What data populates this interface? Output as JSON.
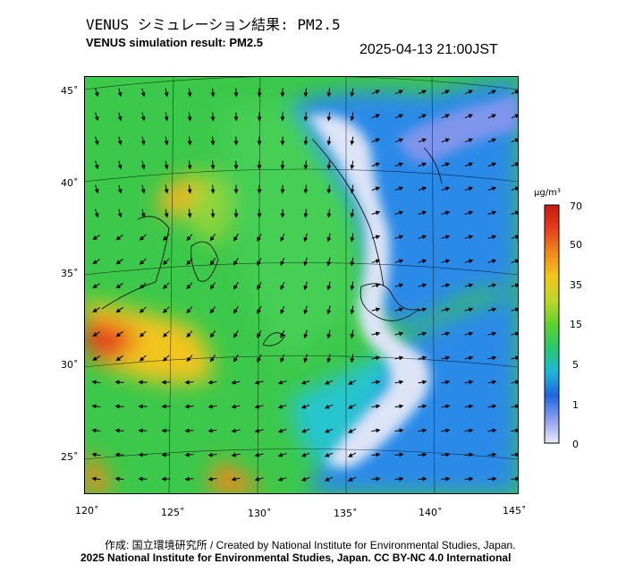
{
  "header": {
    "title_jp": "VENUS シミュレーション結果: PM2.5",
    "title_en": "VENUS simulation result: PM2.5",
    "timestamp": "2025-04-13 21:00JST"
  },
  "map": {
    "lat_labels": [
      "45˚",
      "40˚",
      "35˚",
      "30˚",
      "25˚"
    ],
    "lon_labels": [
      "120˚",
      "125˚",
      "130˚",
      "135˚",
      "140˚",
      "145˚"
    ],
    "colors": {
      "background_green": "#3ccc3c",
      "hotspot_red": "#e81b1b",
      "hotspot_orange": "#f59e1f",
      "hotspot_yellow": "#d8d823",
      "clean_blue": "#2a8ae8",
      "cyan": "#27c5cf",
      "clean_white": "#e8ecf6"
    }
  },
  "colorbar": {
    "unit": "μg/m³",
    "ticks": [
      "70",
      "50",
      "35",
      "15",
      "5",
      "1",
      "0"
    ],
    "colors": [
      "#e8ecf8",
      "#8a9ff0",
      "#1f66e0",
      "#1fb6d8",
      "#28c96a",
      "#5ed22d",
      "#bfd62a",
      "#f2c51c",
      "#f0891c",
      "#e43e1a",
      "#c81a12"
    ]
  },
  "footer": {
    "credit_jp": "作成: 国立環境研究所 / Created by National Institute for Environmental Studies, Japan.",
    "credit_cc": "2025 National Institute for Environmental Studies, Japan. CC BY-NC 4.0 International"
  }
}
